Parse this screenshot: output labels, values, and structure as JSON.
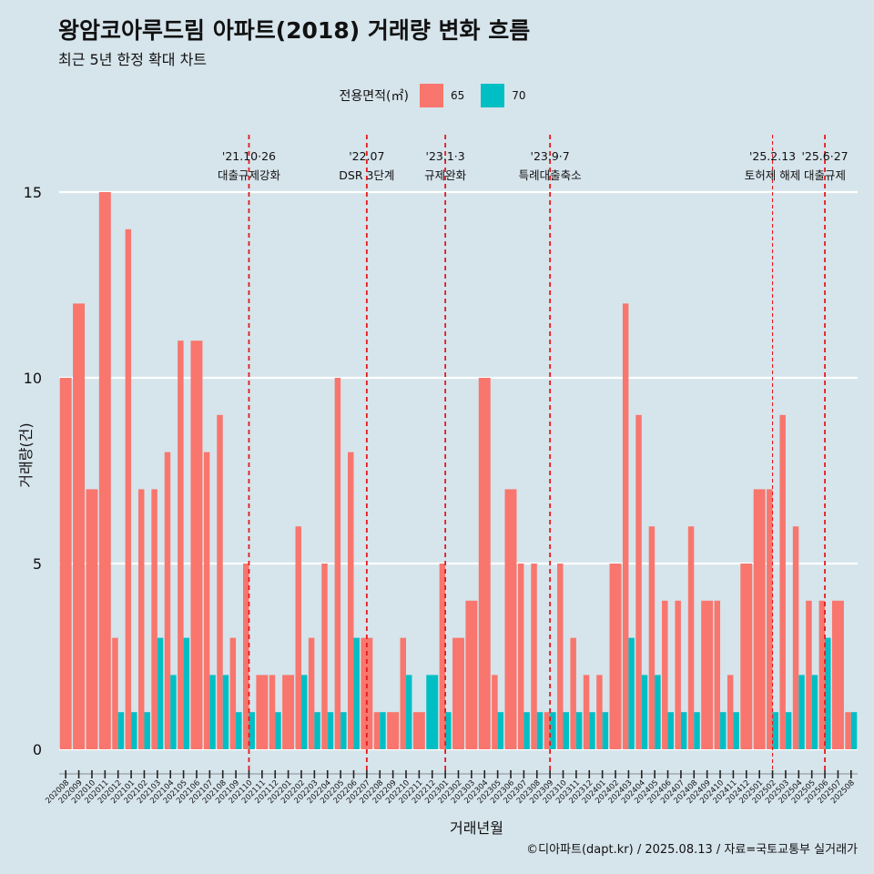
{
  "chart_data": {
    "type": "bar",
    "title": "왕암코아루드림 아파트(2018) 거래량 변화 흐름",
    "subtitle": "최근 5년 한정 확대 차트",
    "xlabel": "거래년월",
    "ylabel": "거래량(건)",
    "ylim": [
      0,
      15
    ],
    "yticks": [
      0,
      5,
      10,
      15
    ],
    "legend": {
      "title": "전용면적(㎡)",
      "position": "top",
      "entries": [
        "65",
        "70"
      ]
    },
    "colors": {
      "65": "#f8766d",
      "70": "#00bfc4"
    },
    "categories": [
      "202008",
      "202009",
      "202010",
      "202011",
      "202012",
      "202101",
      "202102",
      "202103",
      "202104",
      "202105",
      "202106",
      "202107",
      "202108",
      "202109",
      "202110",
      "202111",
      "202112",
      "202201",
      "202202",
      "202203",
      "202204",
      "202205",
      "202206",
      "202207",
      "202208",
      "202209",
      "202210",
      "202211",
      "202212",
      "202301",
      "202302",
      "202303",
      "202304",
      "202305",
      "202306",
      "202307",
      "202308",
      "202309",
      "202310",
      "202311",
      "202312",
      "202401",
      "202402",
      "202403",
      "202404",
      "202405",
      "202406",
      "202407",
      "202408",
      "202409",
      "202410",
      "202411",
      "202412",
      "202501",
      "202502",
      "202503",
      "202504",
      "202505",
      "202506",
      "202507",
      "202508"
    ],
    "series": [
      {
        "name": "65",
        "values": [
          10,
          12,
          7,
          15,
          3,
          14,
          7,
          7,
          8,
          11,
          11,
          8,
          9,
          3,
          5,
          2,
          2,
          2,
          6,
          3,
          5,
          10,
          8,
          3,
          1,
          1,
          3,
          1,
          0,
          5,
          3,
          4,
          10,
          2,
          7,
          5,
          5,
          1,
          5,
          3,
          2,
          2,
          5,
          12,
          9,
          6,
          4,
          4,
          6,
          4,
          4,
          2,
          5,
          7,
          7,
          9,
          6,
          4,
          4,
          4,
          1
        ]
      },
      {
        "name": "70",
        "values": [
          0,
          0,
          0,
          0,
          1,
          1,
          1,
          3,
          2,
          3,
          0,
          2,
          2,
          1,
          1,
          0,
          1,
          0,
          2,
          1,
          1,
          1,
          3,
          0,
          1,
          0,
          2,
          0,
          2,
          1,
          0,
          0,
          0,
          1,
          0,
          1,
          1,
          1,
          1,
          1,
          1,
          1,
          0,
          3,
          2,
          2,
          1,
          1,
          1,
          0,
          1,
          1,
          0,
          0,
          1,
          1,
          2,
          2,
          3,
          0,
          1
        ]
      }
    ],
    "events": [
      {
        "category": "202110",
        "date": "'21.10·26",
        "label": "대출규제강화",
        "style": "bold"
      },
      {
        "category": "202207",
        "date": "'22.07",
        "label": "DSR 3단계",
        "style": "bold"
      },
      {
        "category": "202301",
        "date": "'23.1·3",
        "label": "규제완화",
        "style": "bold"
      },
      {
        "category": "202309",
        "date": "'23.9·7",
        "label": "특례대출축소",
        "style": "bold"
      },
      {
        "category": "202502",
        "date": "'25.2.13",
        "label": "토허제 해제",
        "style": "thin"
      },
      {
        "category": "202506",
        "date": "'25.6·27",
        "label": "대출규제",
        "style": "bold"
      }
    ],
    "caption": "©디아파트(dapt.kr) / 2025.08.13 / 자료=국토교통부 실거래가"
  }
}
